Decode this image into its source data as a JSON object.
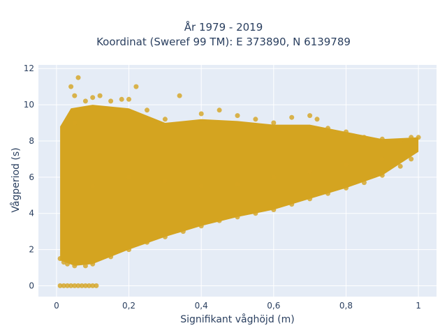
{
  "chart_data": {
    "type": "scatter",
    "title_lines": [
      "År 1979 - 2019",
      "Koordinat (Sweref 99 TM): E 373890, N 6139789"
    ],
    "xlabel": "Signifikant våghöjd (m)",
    "ylabel": "Vågperiod (s)",
    "xlim": [
      -0.05,
      1.05
    ],
    "ylim": [
      -0.6,
      12.2
    ],
    "x_ticks": [
      0,
      0.2,
      0.4,
      0.6,
      0.8,
      1
    ],
    "x_tick_labels": [
      "0",
      "0,2",
      "0,4",
      "0,6",
      "0,8",
      "1"
    ],
    "y_ticks": [
      0,
      2,
      4,
      6,
      8,
      10,
      12
    ],
    "y_tick_labels": [
      "0",
      "2",
      "4",
      "6",
      "8",
      "10",
      "12"
    ],
    "grid": true,
    "legend": "none",
    "series": [
      {
        "color": "#d4a420",
        "note_shape": "dense cloud of measurements",
        "points": [
          [
            0.01,
            0
          ],
          [
            0.02,
            0
          ],
          [
            0.03,
            0
          ],
          [
            0.04,
            0
          ],
          [
            0.05,
            0
          ],
          [
            0.06,
            0
          ],
          [
            0.07,
            0
          ],
          [
            0.08,
            0
          ],
          [
            0.09,
            0
          ],
          [
            0.1,
            0
          ],
          [
            0.11,
            0
          ],
          [
            0.01,
            1.5
          ],
          [
            0.02,
            1.3
          ],
          [
            0.03,
            1.2
          ],
          [
            0.05,
            1.1
          ],
          [
            0.08,
            1.1
          ],
          [
            0.1,
            1.2
          ],
          [
            0.15,
            1.6
          ],
          [
            0.2,
            2.0
          ],
          [
            0.25,
            2.4
          ],
          [
            0.3,
            2.7
          ],
          [
            0.35,
            3.0
          ],
          [
            0.4,
            3.3
          ],
          [
            0.45,
            3.6
          ],
          [
            0.5,
            3.8
          ],
          [
            0.55,
            4.0
          ],
          [
            0.6,
            4.2
          ],
          [
            0.65,
            4.5
          ],
          [
            0.7,
            4.8
          ],
          [
            0.75,
            5.1
          ],
          [
            0.8,
            5.4
          ],
          [
            0.85,
            5.7
          ],
          [
            0.9,
            6.1
          ],
          [
            0.95,
            6.6
          ],
          [
            0.98,
            7.0
          ],
          [
            0.02,
            8.7
          ],
          [
            0.05,
            9.0
          ],
          [
            0.06,
            11.5
          ],
          [
            0.04,
            11.0
          ],
          [
            0.05,
            10.5
          ],
          [
            0.08,
            10.2
          ],
          [
            0.1,
            10.4
          ],
          [
            0.12,
            10.5
          ],
          [
            0.15,
            10.2
          ],
          [
            0.18,
            10.3
          ],
          [
            0.2,
            10.3
          ],
          [
            0.22,
            11.0
          ],
          [
            0.25,
            9.7
          ],
          [
            0.3,
            9.2
          ],
          [
            0.34,
            10.5
          ],
          [
            0.4,
            9.5
          ],
          [
            0.45,
            9.7
          ],
          [
            0.5,
            9.4
          ],
          [
            0.55,
            9.2
          ],
          [
            0.6,
            9.0
          ],
          [
            0.65,
            9.3
          ],
          [
            0.7,
            9.4
          ],
          [
            0.72,
            9.2
          ],
          [
            0.75,
            8.7
          ],
          [
            0.8,
            8.5
          ],
          [
            0.85,
            8.2
          ],
          [
            0.9,
            8.1
          ],
          [
            0.95,
            8.0
          ],
          [
            0.98,
            8.2
          ],
          [
            1.0,
            8.2
          ],
          [
            0.99,
            7.6
          ],
          [
            0.1,
            5.5
          ],
          [
            0.2,
            6.0
          ],
          [
            0.3,
            5.8
          ],
          [
            0.4,
            5.5
          ],
          [
            0.5,
            5.6
          ],
          [
            0.6,
            6.0
          ],
          [
            0.7,
            6.3
          ],
          [
            0.8,
            6.7
          ],
          [
            0.9,
            7.0
          ]
        ]
      }
    ]
  }
}
